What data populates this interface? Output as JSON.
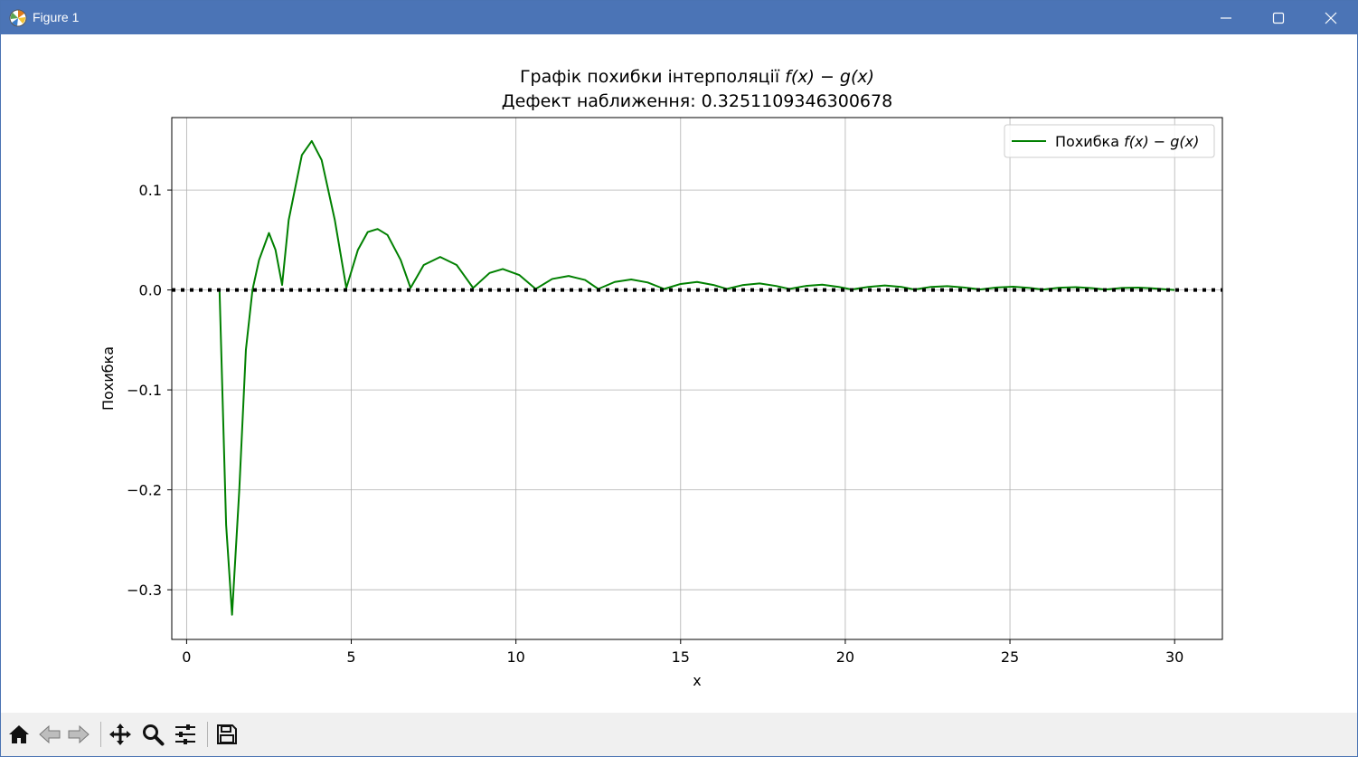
{
  "window": {
    "title": "Figure 1"
  },
  "chart_data": {
    "type": "line",
    "title": "Графік похибки інтерполяції",
    "title_math": "f(x) − g(x)",
    "subtitle": "Дефект наближення: 0.3251109346300678",
    "xlabel": "x",
    "ylabel": "Похибка",
    "xlim": [
      -0.45,
      31.45
    ],
    "ylim": [
      -0.3497,
      0.1725
    ],
    "xticks": [
      0,
      5,
      10,
      15,
      20,
      25,
      30
    ],
    "xtick_labels": [
      "0",
      "5",
      "10",
      "15",
      "20",
      "25",
      "30"
    ],
    "yticks": [
      0.1,
      0.0,
      -0.1,
      -0.2,
      -0.3
    ],
    "ytick_labels": [
      "0.1",
      "0.0",
      "−0.1",
      "−0.2",
      "−0.3"
    ],
    "grid": true,
    "legend": {
      "placement": "top-right",
      "label": "Похибка",
      "label_math": "f(x) − g(x)"
    },
    "series": [
      {
        "name": "Похибка f(x) − g(x)",
        "color": "#008000",
        "points": [
          [
            1.0,
            0.0
          ],
          [
            1.2,
            -0.235
          ],
          [
            1.38,
            -0.325
          ],
          [
            1.6,
            -0.2
          ],
          [
            1.8,
            -0.06
          ],
          [
            2.0,
            0.0
          ],
          [
            2.2,
            0.03
          ],
          [
            2.5,
            0.057
          ],
          [
            2.7,
            0.04
          ],
          [
            2.9,
            0.005
          ],
          [
            3.1,
            0.07
          ],
          [
            3.5,
            0.135
          ],
          [
            3.8,
            0.149
          ],
          [
            4.1,
            0.13
          ],
          [
            4.5,
            0.07
          ],
          [
            4.85,
            0.002
          ],
          [
            5.2,
            0.04
          ],
          [
            5.5,
            0.058
          ],
          [
            5.8,
            0.061
          ],
          [
            6.1,
            0.055
          ],
          [
            6.5,
            0.03
          ],
          [
            6.8,
            0.002
          ],
          [
            7.2,
            0.025
          ],
          [
            7.7,
            0.033
          ],
          [
            8.2,
            0.025
          ],
          [
            8.7,
            0.002
          ],
          [
            9.2,
            0.017
          ],
          [
            9.6,
            0.021
          ],
          [
            10.1,
            0.015
          ],
          [
            10.6,
            0.001
          ],
          [
            11.1,
            0.011
          ],
          [
            11.6,
            0.014
          ],
          [
            12.1,
            0.01
          ],
          [
            12.5,
            0.001
          ],
          [
            13.0,
            0.008
          ],
          [
            13.5,
            0.0105
          ],
          [
            14.0,
            0.0075
          ],
          [
            14.5,
            0.001
          ],
          [
            15.0,
            0.006
          ],
          [
            15.5,
            0.008
          ],
          [
            16.0,
            0.005
          ],
          [
            16.4,
            0.001
          ],
          [
            16.9,
            0.005
          ],
          [
            17.4,
            0.0065
          ],
          [
            17.9,
            0.004
          ],
          [
            18.3,
            0.001
          ],
          [
            18.8,
            0.004
          ],
          [
            19.3,
            0.0053
          ],
          [
            19.8,
            0.003
          ],
          [
            20.2,
            0.0005
          ],
          [
            20.7,
            0.003
          ],
          [
            21.2,
            0.0045
          ],
          [
            21.7,
            0.003
          ],
          [
            22.1,
            0.0005
          ],
          [
            22.6,
            0.003
          ],
          [
            23.1,
            0.0038
          ],
          [
            23.6,
            0.0025
          ],
          [
            24.1,
            0.0005
          ],
          [
            24.6,
            0.0025
          ],
          [
            25.1,
            0.0033
          ],
          [
            25.6,
            0.002
          ],
          [
            26.0,
            0.0004
          ],
          [
            26.5,
            0.0022
          ],
          [
            27.0,
            0.0028
          ],
          [
            27.5,
            0.0018
          ],
          [
            27.9,
            0.0004
          ],
          [
            28.4,
            0.002
          ],
          [
            28.9,
            0.0024
          ],
          [
            29.4,
            0.0015
          ],
          [
            30.0,
            0.0
          ]
        ]
      },
      {
        "name": "",
        "color": "#000000",
        "style": "dotted",
        "points": [
          [
            -0.45,
            0.0
          ],
          [
            31.45,
            0.0
          ]
        ]
      }
    ]
  },
  "toolbar": {
    "buttons": [
      {
        "name": "home-button",
        "icon": "home-icon"
      },
      {
        "name": "back-button",
        "icon": "arrow-left-icon"
      },
      {
        "name": "forward-button",
        "icon": "arrow-right-icon"
      },
      {
        "name": "pan-button",
        "icon": "move-icon"
      },
      {
        "name": "zoom-button",
        "icon": "magnifier-icon"
      },
      {
        "name": "configure-subplots-button",
        "icon": "sliders-icon"
      },
      {
        "name": "save-button",
        "icon": "floppy-disk-icon"
      }
    ]
  }
}
